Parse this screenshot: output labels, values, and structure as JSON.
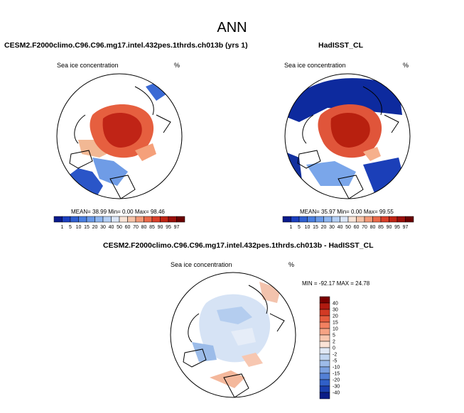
{
  "figure": {
    "title": "ANN",
    "panels": [
      {
        "title": "CESM2.F2000climo.C96.C96.mg17.intel.432pes.1thrds.ch013b (yrs 1)",
        "var_label": "Sea ice concentration",
        "units": "%",
        "stats": "MEAN= 38.99  Min=  0.00  Max= 98.46"
      },
      {
        "title": "HadISST_CL",
        "var_label": "Sea ice concentration",
        "units": "%",
        "stats": "MEAN= 35.97  Min=  0.00  Max= 99.55"
      },
      {
        "title": "CESM2.F2000climo.C96.C96.mg17.intel.432pes.1thrds.ch013b - HadISST_CL",
        "var_label": "Sea ice concentration",
        "units": "%",
        "stats": "MIN = -92.17 MAX =  24.78"
      }
    ],
    "colorbar_abs": {
      "labels": [
        "1",
        "5",
        "10",
        "15",
        "20",
        "30",
        "40",
        "50",
        "60",
        "70",
        "80",
        "85",
        "90",
        "95",
        "97"
      ],
      "colors": [
        "#0a1a8c",
        "#1b3fbf",
        "#2f5fd0",
        "#4a7fe0",
        "#6a9ae8",
        "#8eb6f0",
        "#b4cff5",
        "#dbe6f7",
        "#f7e3d6",
        "#f6c3a8",
        "#f39a78",
        "#ea6a4a",
        "#d9402a",
        "#bf2414",
        "#9a0f0a",
        "#6a0000"
      ]
    },
    "colorbar_diff": {
      "labels": [
        "40",
        "30",
        "20",
        "15",
        "10",
        "5",
        "2",
        "0",
        "-2",
        "-5",
        "-10",
        "-15",
        "-20",
        "-30",
        "-40"
      ],
      "colors": [
        "#7a0000",
        "#b01a10",
        "#d23a24",
        "#e65c3e",
        "#f28060",
        "#f6a384",
        "#f9c6ae",
        "#fbe3d6",
        "#e0e8f5",
        "#c1d5f0",
        "#9dbbe9",
        "#7aa0e0",
        "#5380d5",
        "#3060c8",
        "#1a3fae",
        "#0a1c86"
      ]
    }
  }
}
